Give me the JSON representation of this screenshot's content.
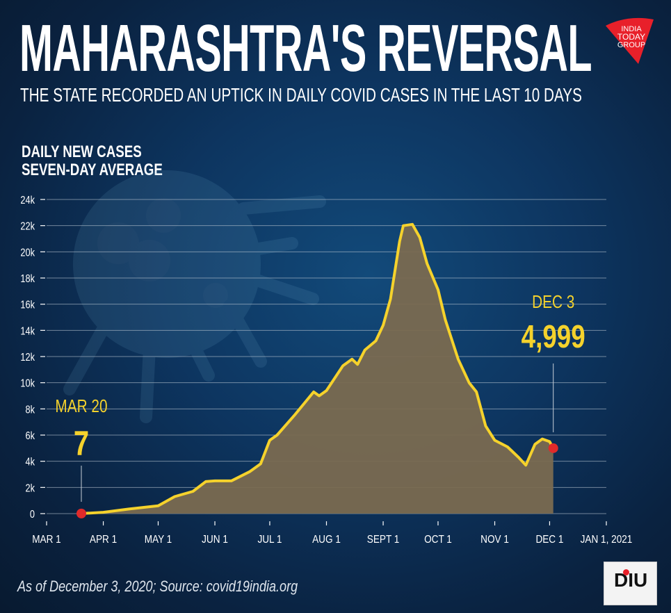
{
  "header": {
    "title": "MAHARASHTRA'S REVERSAL",
    "subtitle": "THE STATE RECORDED AN UPTICK IN DAILY COVID CASES IN THE LAST 10 DAYS",
    "logo_text": [
      "INDIA",
      "TODAY",
      "GROUP"
    ]
  },
  "footer": {
    "source": "As of December 3, 2020; Source: covid19india.org",
    "logo_text": "DIU"
  },
  "colors": {
    "line": "#f5d22c",
    "fill": "#7a6a50",
    "marker": "#e02a2a",
    "logo_red": "#e8202a"
  },
  "chart_data": {
    "type": "area",
    "ylabel_lines": [
      "DAILY NEW CASES",
      "SEVEN-DAY AVERAGE"
    ],
    "ylim": [
      0,
      24000
    ],
    "yticks": [
      0,
      2000,
      4000,
      6000,
      8000,
      10000,
      12000,
      14000,
      16000,
      18000,
      20000,
      22000,
      24000
    ],
    "ytick_labels": [
      "0",
      "2k",
      "4k",
      "6k",
      "8k",
      "10k",
      "12k",
      "14k",
      "16k",
      "18k",
      "20k",
      "22k",
      "24k"
    ],
    "xlim": [
      "2020-03-01",
      "2021-01-01"
    ],
    "xticks": [
      "2020-03-01",
      "2020-04-01",
      "2020-05-01",
      "2020-06-01",
      "2020-07-01",
      "2020-08-01",
      "2020-09-01",
      "2020-10-01",
      "2020-11-01",
      "2020-12-01",
      "2021-01-01"
    ],
    "xtick_labels": [
      "MAR 1",
      "APR 1",
      "MAY 1",
      "JUN 1",
      "JUL 1",
      "AUG 1",
      "SEPT 1",
      "OCT 1",
      "NOV 1",
      "DEC 1",
      "JAN 1, 2021"
    ],
    "grid": true,
    "series": [
      {
        "x": [
          "2020-03-20",
          "2020-04-01",
          "2020-04-15",
          "2020-05-01",
          "2020-05-10",
          "2020-05-20",
          "2020-05-27",
          "2020-06-01",
          "2020-06-10",
          "2020-06-20",
          "2020-06-26",
          "2020-07-01",
          "2020-07-05",
          "2020-07-15",
          "2020-07-25",
          "2020-07-28",
          "2020-08-01",
          "2020-08-10",
          "2020-08-15",
          "2020-08-18",
          "2020-08-22",
          "2020-08-28",
          "2020-09-01",
          "2020-09-05",
          "2020-09-10",
          "2020-09-12",
          "2020-09-17",
          "2020-09-21",
          "2020-09-25",
          "2020-10-01",
          "2020-10-05",
          "2020-10-12",
          "2020-10-18",
          "2020-10-22",
          "2020-10-27",
          "2020-11-01",
          "2020-11-08",
          "2020-11-14",
          "2020-11-18",
          "2020-11-23",
          "2020-11-27",
          "2020-12-01",
          "2020-12-03"
        ],
        "y": [
          7,
          100,
          350,
          600,
          1300,
          1700,
          2450,
          2500,
          2500,
          3200,
          3800,
          5600,
          6000,
          7600,
          9300,
          9000,
          9400,
          11300,
          11800,
          11400,
          12500,
          13200,
          14400,
          16400,
          20800,
          22000,
          22100,
          21100,
          19100,
          17100,
          14800,
          11800,
          10000,
          9300,
          6700,
          5600,
          5100,
          4300,
          3700,
          5300,
          5700,
          5500,
          4999
        ]
      }
    ],
    "annotations": [
      {
        "date_label": "MAR 20",
        "value_label": "7",
        "x": "2020-03-20",
        "y": 7
      },
      {
        "date_label": "DEC 3",
        "value_label": "4,999",
        "x": "2020-12-03",
        "y": 4999
      }
    ]
  }
}
